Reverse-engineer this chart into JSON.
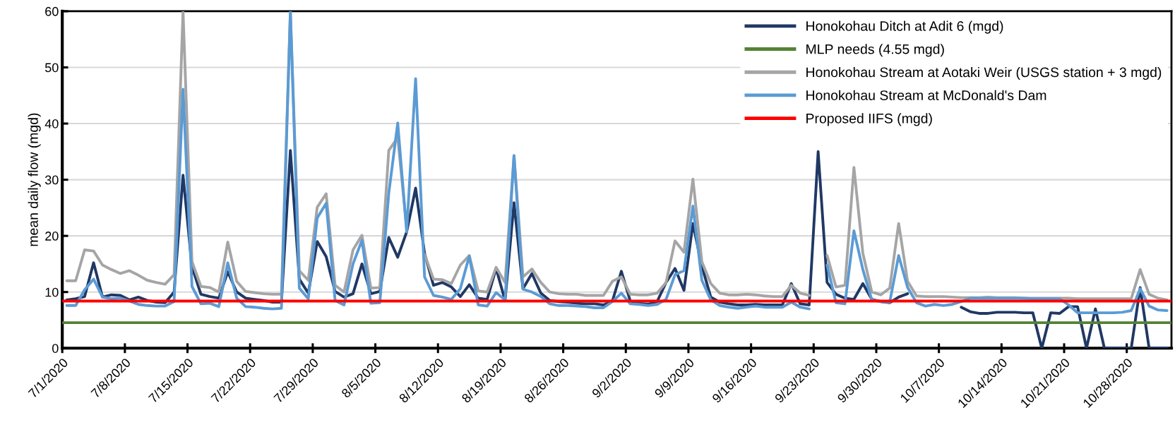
{
  "chart_data": {
    "type": "line",
    "ylabel": "mean daily flow (mgd)",
    "x": [
      "2020-07-01T12:00",
      "2020-07-02T12:00",
      "2020-07-03T12:00",
      "2020-07-04T12:00",
      "2020-07-05T12:00",
      "2020-07-06T12:00",
      "2020-07-07T12:00",
      "2020-07-08T12:00",
      "2020-07-09T12:00",
      "2020-07-10T12:00",
      "2020-07-11T12:00",
      "2020-07-12T12:00",
      "2020-07-13T12:00",
      "2020-07-14T12:00",
      "2020-07-15T12:00",
      "2020-07-16T12:00",
      "2020-07-17T12:00",
      "2020-07-18T12:00",
      "2020-07-19T12:00",
      "2020-07-20T12:00",
      "2020-07-21T12:00",
      "2020-07-22T12:00",
      "2020-07-23T12:00",
      "2020-07-24T12:00",
      "2020-07-25T12:00",
      "2020-07-26T12:00",
      "2020-07-27T12:00",
      "2020-07-28T12:00",
      "2020-07-29T12:00",
      "2020-07-30T12:00",
      "2020-07-31T12:00",
      "2020-08-01T12:00",
      "2020-08-02T12:00",
      "2020-08-03T12:00",
      "2020-08-04T12:00",
      "2020-08-05T12:00",
      "2020-08-06T12:00",
      "2020-08-07T12:00",
      "2020-08-08T12:00",
      "2020-08-09T12:00",
      "2020-08-10T12:00",
      "2020-08-11T12:00",
      "2020-08-12T12:00",
      "2020-08-13T12:00",
      "2020-08-14T12:00",
      "2020-08-15T12:00",
      "2020-08-16T12:00",
      "2020-08-17T12:00",
      "2020-08-18T12:00",
      "2020-08-19T12:00",
      "2020-08-20T12:00",
      "2020-08-21T12:00",
      "2020-08-22T12:00",
      "2020-08-23T12:00",
      "2020-08-24T12:00",
      "2020-08-25T12:00",
      "2020-08-26T12:00",
      "2020-08-27T12:00",
      "2020-08-28T12:00",
      "2020-08-29T12:00",
      "2020-08-30T12:00",
      "2020-08-31T12:00",
      "2020-09-01T12:00",
      "2020-09-02T12:00",
      "2020-09-03T12:00",
      "2020-09-04T12:00",
      "2020-09-05T12:00",
      "2020-09-06T12:00",
      "2020-09-07T12:00",
      "2020-09-08T12:00",
      "2020-09-09T12:00",
      "2020-09-10T12:00",
      "2020-09-11T12:00",
      "2020-09-12T12:00",
      "2020-09-13T12:00",
      "2020-09-14T12:00",
      "2020-09-15T12:00",
      "2020-09-16T12:00",
      "2020-09-17T12:00",
      "2020-09-18T12:00",
      "2020-09-19T12:00",
      "2020-09-20T12:00",
      "2020-09-21T12:00",
      "2020-09-22T12:00",
      "2020-09-23T12:00",
      "2020-09-24T12:00",
      "2020-09-25T12:00",
      "2020-09-26T12:00",
      "2020-09-27T12:00",
      "2020-09-28T12:00",
      "2020-09-29T12:00",
      "2020-09-30T12:00",
      "2020-10-01T12:00",
      "2020-10-02T12:00",
      "2020-10-03T12:00",
      "2020-10-04T12:00",
      "2020-10-05T12:00",
      "2020-10-06T12:00",
      "2020-10-07T12:00",
      "2020-10-08T12:00",
      "2020-10-09T12:00",
      "2020-10-10T12:00",
      "2020-10-11T12:00",
      "2020-10-12T12:00",
      "2020-10-13T12:00",
      "2020-10-14T12:00",
      "2020-10-15T12:00",
      "2020-10-16T12:00",
      "2020-10-17T12:00",
      "2020-10-18T12:00",
      "2020-10-19T12:00",
      "2020-10-20T12:00",
      "2020-10-21T12:00",
      "2020-10-22T12:00",
      "2020-10-23T12:00",
      "2020-10-24T12:00",
      "2020-10-25T12:00",
      "2020-10-26T12:00",
      "2020-10-27T12:00",
      "2020-10-28T12:00",
      "2020-10-29T12:00",
      "2020-10-30T12:00",
      "2020-10-31T12:00",
      "2020-11-01T12:00"
    ],
    "series": [
      {
        "name": "Honokohau Ditch at Adit 6 (mgd)",
        "color": "#203864",
        "values": [
          8.6,
          8.8,
          9.2,
          15.2,
          9.1,
          9.5,
          9.4,
          8.6,
          9.1,
          8.5,
          8.2,
          8.1,
          10.0,
          30.8,
          14.5,
          9.6,
          9.2,
          8.9,
          13.6,
          10.0,
          8.9,
          8.7,
          8.5,
          8.2,
          8.2,
          35.2,
          12.3,
          9.8,
          19.0,
          16.3,
          10.1,
          9.1,
          9.7,
          15.0,
          9.7,
          10.1,
          19.7,
          16.2,
          20.7,
          28.5,
          16.9,
          11.2,
          11.7,
          10.9,
          9.2,
          11.3,
          8.9,
          8.7,
          14.2,
          8.5,
          25.9,
          10.6,
          13.3,
          9.8,
          8.5,
          8.3,
          8.2,
          8.0,
          7.9,
          7.9,
          7.7,
          8.4,
          13.7,
          8.4,
          8.0,
          7.8,
          8.3,
          11.7,
          14.2,
          10.3,
          22.2,
          14.6,
          9.1,
          8.2,
          7.9,
          7.7,
          7.7,
          7.8,
          7.7,
          7.7,
          7.7,
          11.5,
          7.9,
          7.7,
          35,
          11.7,
          9.6,
          8.9,
          8.7,
          11.5,
          8.7,
          8.3,
          8.1,
          9.1,
          9.7,
          null,
          null,
          null,
          null,
          null,
          7.3,
          6.5,
          6.2,
          6.2,
          6.4,
          6.4,
          6.4,
          6.3,
          6.3,
          0,
          6.3,
          6.2,
          7.4,
          7.4,
          0,
          7.0,
          0,
          0,
          0,
          0,
          10.8,
          0,
          0,
          0
        ]
      },
      {
        "name": "MLP needs (4.55 mgd)",
        "color": "#548235",
        "x": [
          "2020-07-01",
          "2020-11-02"
        ],
        "values": [
          4.55,
          4.55
        ]
      },
      {
        "name": "Honokohau Stream at Aotaki Weir (USGS station + 3 mgd)",
        "color": "#a5a5a5",
        "values": [
          12.0,
          12.0,
          17.5,
          17.3,
          14.8,
          14.0,
          13.3,
          13.8,
          13.0,
          12.1,
          11.7,
          11.4,
          13.1,
          60,
          15.4,
          11.0,
          10.8,
          10.0,
          18.9,
          11.9,
          10.1,
          9.9,
          9.7,
          9.6,
          9.6,
          60,
          13.8,
          12.1,
          25.1,
          27.5,
          11.2,
          10.0,
          17.5,
          20.1,
          10.7,
          10.8,
          35.2,
          37.5,
          21.5,
          null,
          16.7,
          12.3,
          12.2,
          11.5,
          14.8,
          16.5,
          10.2,
          10.0,
          14.4,
          11.7,
          34.3,
          12.7,
          14.1,
          11.7,
          10.0,
          9.7,
          9.6,
          9.6,
          9.4,
          9.4,
          9.4,
          11.9,
          12.7,
          9.6,
          9.5,
          9.5,
          9.8,
          11.7,
          19.1,
          17.1,
          30.1,
          15.4,
          11.5,
          9.8,
          9.5,
          9.5,
          9.6,
          9.5,
          9.3,
          9.2,
          9.2,
          11.2,
          9.8,
          9.4,
          null,
          16.5,
          10.9,
          11.2,
          32.2,
          16.9,
          10.0,
          9.5,
          10.7,
          22.2,
          11.9,
          9.3,
          9.2,
          9.2,
          9.2,
          9.1,
          9.0,
          9.0,
          9.0,
          9.1,
          9.0,
          9.0,
          9.0,
          8.9,
          8.9,
          8.9,
          8.9,
          8.9,
          8.9,
          8.8,
          8.8,
          8.8,
          8.8,
          8.8,
          8.8,
          8.8,
          14.0,
          9.6,
          8.9,
          8.6
        ]
      },
      {
        "name": "Honokohau Stream at McDonald's Dam",
        "color": "#5b9bd5",
        "values": [
          7.6,
          7.6,
          10.4,
          12.3,
          9.1,
          8.8,
          8.9,
          8.4,
          7.8,
          7.6,
          7.5,
          7.5,
          8.3,
          46.1,
          11.0,
          7.9,
          8.0,
          7.4,
          15.2,
          8.9,
          7.4,
          7.3,
          7.1,
          7.0,
          7.1,
          60,
          10.7,
          8.8,
          23.2,
          25.8,
          8.5,
          7.7,
          15.0,
          19.2,
          8.0,
          8.1,
          27.6,
          40.1,
          20.7,
          48.0,
          12.7,
          9.4,
          9.1,
          8.7,
          10.6,
          16.4,
          7.7,
          7.5,
          9.9,
          8.6,
          34.3,
          10.5,
          10.0,
          9.2,
          7.9,
          7.6,
          7.6,
          7.5,
          7.4,
          7.2,
          7.2,
          8.3,
          9.8,
          7.9,
          7.8,
          7.6,
          7.8,
          8.7,
          13.1,
          13.8,
          25.3,
          12.1,
          8.6,
          7.6,
          7.3,
          7.1,
          7.3,
          7.5,
          7.3,
          7.3,
          7.3,
          8.2,
          7.3,
          7.0,
          null,
          14.8,
          8.1,
          7.9,
          20.9,
          14.0,
          8.6,
          8.3,
          8.2,
          16.5,
          10.8,
          8.1,
          7.5,
          7.8,
          7.6,
          7.8,
          8.3,
          8.9,
          8.9,
          8.9,
          8.9,
          8.9,
          8.9,
          8.9,
          8.8,
          8.8,
          8.8,
          8.8,
          7.7,
          6.3,
          6.3,
          6.3,
          6.3,
          6.3,
          6.4,
          6.7,
          10.6,
          7.5,
          6.8,
          6.7
        ]
      },
      {
        "name": "Proposed IIFS (mgd)",
        "color": "#ff0000",
        "x": [
          "2020-07-01",
          "2020-11-02"
        ],
        "values": [
          8.4,
          8.4
        ]
      }
    ],
    "xlim": [
      "2020-07-01",
      "2020-11-02"
    ],
    "xticks": [
      {
        "value": "2020-07-01",
        "label": "7/1/2020"
      },
      {
        "value": "2020-07-08",
        "label": "7/8/2020"
      },
      {
        "value": "2020-07-15",
        "label": "7/15/2020"
      },
      {
        "value": "2020-07-22",
        "label": "7/22/2020"
      },
      {
        "value": "2020-07-29",
        "label": "7/29/2020"
      },
      {
        "value": "2020-08-05",
        "label": "8/5/2020"
      },
      {
        "value": "2020-08-12",
        "label": "8/12/2020"
      },
      {
        "value": "2020-08-19",
        "label": "8/19/2020"
      },
      {
        "value": "2020-08-26",
        "label": "8/26/2020"
      },
      {
        "value": "2020-09-02",
        "label": "9/2/2020"
      },
      {
        "value": "2020-09-09",
        "label": "9/9/2020"
      },
      {
        "value": "2020-09-16",
        "label": "9/16/2020"
      },
      {
        "value": "2020-09-23",
        "label": "9/23/2020"
      },
      {
        "value": "2020-09-30",
        "label": "9/30/2020"
      },
      {
        "value": "2020-10-07",
        "label": "10/7/2020"
      },
      {
        "value": "2020-10-14",
        "label": "10/14/2020"
      },
      {
        "value": "2020-10-21",
        "label": "10/21/2020"
      },
      {
        "value": "2020-10-28",
        "label": "10/28/2020"
      }
    ],
    "ylim": [
      0,
      60
    ],
    "yticks": [
      0,
      10,
      20,
      30,
      40,
      50,
      60
    ],
    "grid": "y",
    "legend": "top right",
    "marker": "none",
    "line_style": "solid"
  }
}
